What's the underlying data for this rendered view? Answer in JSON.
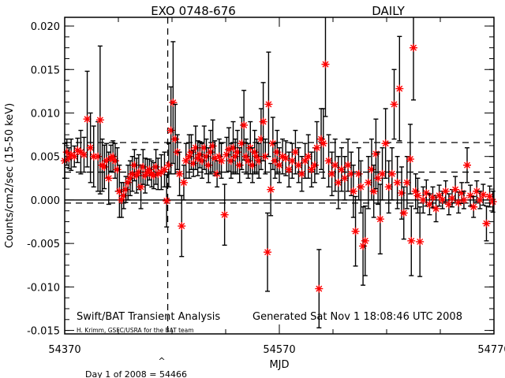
{
  "chart_data": {
    "type": "scatter",
    "title": "EXO 0748-676",
    "title_right": "DAILY",
    "xlabel": "MJD",
    "ylabel": "Counts/cm2/sec (15-50 keV)",
    "xlim": [
      54370,
      54770
    ],
    "ylim": [
      -0.0154,
      0.021
    ],
    "x_ticks": [
      "54370",
      "54570",
      "54770"
    ],
    "y_ticks": [
      "0.020",
      "0.015",
      "0.010",
      "0.005",
      "0.000",
      "-0.005",
      "-0.010",
      "-0.015"
    ],
    "grid": false,
    "marker_color": "#ff0000",
    "errorbar_color": "#000000",
    "reference_lines": {
      "solid_y": 0.0,
      "dashed_y": [
        0.0066,
        0.0032,
        -0.00036
      ],
      "dashed_x": 54466
    },
    "annotations": {
      "left_credit": "Swift/BAT Transient Analysis",
      "generated": "Generated Sat Nov  1 18:08:46 UTC 2008",
      "author": "H. Krimm, GSFC/USRA for the BAT team",
      "caret": "^",
      "day_note": "Day 1 of 2008 = 54466"
    },
    "series": [
      {
        "x": [
          54370,
          54372,
          54374,
          54376,
          54379,
          54382,
          54385,
          54388,
          54391,
          54394,
          54397,
          54401,
          54403,
          54405,
          54407,
          54409,
          54411,
          54413,
          54415,
          54417,
          54419,
          54421,
          54423,
          54425,
          54427,
          54429,
          54431,
          54433,
          54435,
          54437,
          54439,
          54441,
          54443,
          54445,
          54447,
          54449,
          54451,
          54453,
          54455,
          54457,
          54460,
          54463,
          54465,
          54467,
          54469,
          54471,
          54473,
          54475,
          54477,
          54479,
          54481,
          54483,
          54486,
          54488,
          54490,
          54492,
          54494,
          54496,
          54498,
          54500,
          54502,
          54504,
          54506,
          54508,
          54510,
          54512,
          54514,
          54516,
          54519,
          54521,
          54523,
          54525,
          54527,
          54529,
          54531,
          54533,
          54535,
          54537,
          54539,
          54541,
          54543,
          54545,
          54547,
          54549,
          54551,
          54553,
          54555,
          54557,
          54559,
          54560,
          54562,
          54564,
          54566,
          54568,
          54570,
          54573,
          54576,
          54579,
          54582,
          54585,
          54588,
          54591,
          54594,
          54597,
          54600,
          54603,
          54605,
          54607,
          54609,
          54611,
          54613,
          54616,
          54619,
          54622,
          54625,
          54628,
          54631,
          54634,
          54637,
          54639,
          54641,
          54644,
          54646,
          54648,
          54650,
          54653,
          54656,
          54658,
          54660,
          54662,
          54664,
          54666,
          54669,
          54672,
          54675,
          54677,
          54680,
          54682,
          54684,
          54686,
          54689,
          54692,
          54693,
          54695,
          54697,
          54699,
          54701,
          54704,
          54707,
          54710,
          54713,
          54716,
          54719,
          54722,
          54725,
          54728,
          54731,
          54734,
          54737,
          54740,
          54742,
          54745,
          54748,
          54751,
          54754,
          54757,
          54760,
          54763,
          54766,
          54769
        ],
        "y": [
          0.0045,
          0.0055,
          0.0048,
          0.0052,
          0.005,
          0.0057,
          0.0055,
          0.0052,
          0.0093,
          0.006,
          0.005,
          0.005,
          0.0092,
          0.004,
          0.0038,
          0.0045,
          0.0025,
          0.0048,
          0.005,
          0.0045,
          0.0035,
          0.001,
          0.0,
          0.0005,
          0.0012,
          0.002,
          0.0025,
          0.003,
          0.004,
          0.0028,
          0.0032,
          0.0015,
          0.0038,
          0.0028,
          0.0032,
          0.0035,
          0.003,
          0.0028,
          0.0038,
          0.003,
          0.0032,
          0.0035,
          -0.0001,
          0.004,
          0.008,
          0.0112,
          0.007,
          0.0055,
          0.003,
          -0.003,
          0.002,
          0.0045,
          0.005,
          0.0055,
          0.0042,
          0.006,
          0.0048,
          0.0052,
          0.0045,
          0.006,
          0.005,
          0.004,
          0.0055,
          0.0062,
          0.0048,
          0.003,
          0.005,
          0.0045,
          -0.0017,
          0.0052,
          0.0058,
          0.0045,
          0.006,
          0.005,
          0.0055,
          0.004,
          0.0065,
          0.0086,
          0.005,
          0.0045,
          0.006,
          0.004,
          0.0055,
          0.005,
          0.0045,
          0.007,
          0.009,
          0.005,
          -0.006,
          0.011,
          0.0012,
          0.0065,
          0.0045,
          0.0055,
          0.004,
          0.005,
          0.0048,
          0.0035,
          0.0045,
          0.0055,
          0.004,
          0.003,
          0.0045,
          0.005,
          0.0035,
          0.004,
          0.006,
          -0.0102,
          0.007,
          0.0065,
          0.0156,
          0.0045,
          0.003,
          0.004,
          0.002,
          0.0035,
          0.0025,
          0.004,
          0.003,
          0.001,
          -0.0036,
          0.003,
          0.0015,
          -0.0053,
          -0.0047,
          0.002,
          0.0035,
          0.001,
          0.0053,
          0.0025,
          -0.0022,
          0.003,
          0.0065,
          0.0015,
          0.003,
          0.011,
          0.002,
          0.0128,
          0.0008,
          -0.0015,
          0.002,
          0.0047,
          -0.0047,
          0.0175,
          0.001,
          0.0005,
          -0.0048,
          0.0,
          0.0008,
          -0.0005,
          0.0003,
          -0.001,
          0.0005,
          0.0,
          0.001,
          -0.0005,
          0.0002,
          0.0012,
          -0.0003,
          0.0008,
          0.0,
          0.004,
          0.0005,
          -0.0008,
          0.001,
          0.0,
          0.0006,
          -0.0027,
          0.0004,
          -0.0002
        ],
        "yerr": [
          0.002,
          0.0015,
          0.0012,
          0.0018,
          0.0012,
          0.0014,
          0.0025,
          0.002,
          0.0055,
          0.004,
          0.0035,
          0.004,
          0.0085,
          0.003,
          0.0025,
          0.002,
          0.003,
          0.0015,
          0.0018,
          0.002,
          0.0025,
          0.003,
          0.002,
          0.0015,
          0.0015,
          0.002,
          0.002,
          0.002,
          0.0018,
          0.002,
          0.002,
          0.0025,
          0.002,
          0.002,
          0.0015,
          0.0012,
          0.0015,
          0.0015,
          0.002,
          0.0018,
          0.002,
          0.002,
          0.003,
          0.0025,
          0.005,
          0.007,
          0.004,
          0.002,
          0.0025,
          0.0035,
          0.002,
          0.002,
          0.0025,
          0.002,
          0.0015,
          0.0025,
          0.002,
          0.0015,
          0.002,
          0.0025,
          0.002,
          0.002,
          0.0025,
          0.003,
          0.002,
          0.0015,
          0.002,
          0.002,
          0.0035,
          0.002,
          0.0025,
          0.002,
          0.003,
          0.002,
          0.0025,
          0.002,
          0.003,
          0.004,
          0.002,
          0.002,
          0.003,
          0.002,
          0.0025,
          0.002,
          0.002,
          0.0035,
          0.0045,
          0.002,
          0.0045,
          0.006,
          0.003,
          0.003,
          0.002,
          0.0025,
          0.002,
          0.002,
          0.002,
          0.002,
          0.002,
          0.0025,
          0.002,
          0.002,
          0.002,
          0.0025,
          0.002,
          0.002,
          0.003,
          0.0045,
          0.0035,
          0.004,
          0.006,
          0.003,
          0.0025,
          0.003,
          0.003,
          0.0025,
          0.0025,
          0.003,
          0.0025,
          0.003,
          0.004,
          0.003,
          0.003,
          0.0045,
          0.004,
          0.003,
          0.0035,
          0.003,
          0.004,
          0.003,
          0.004,
          0.003,
          0.004,
          0.003,
          0.003,
          0.004,
          0.003,
          0.006,
          0.003,
          0.003,
          0.003,
          0.004,
          0.004,
          0.006,
          0.002,
          0.002,
          0.004,
          0.0015,
          0.0015,
          0.0012,
          0.0012,
          0.0015,
          0.0012,
          0.001,
          0.0012,
          0.0012,
          0.001,
          0.0015,
          0.0012,
          0.0012,
          0.001,
          0.002,
          0.0012,
          0.0012,
          0.0012,
          0.001,
          0.0012,
          0.002,
          0.0012,
          0.0012
        ]
      }
    ]
  }
}
